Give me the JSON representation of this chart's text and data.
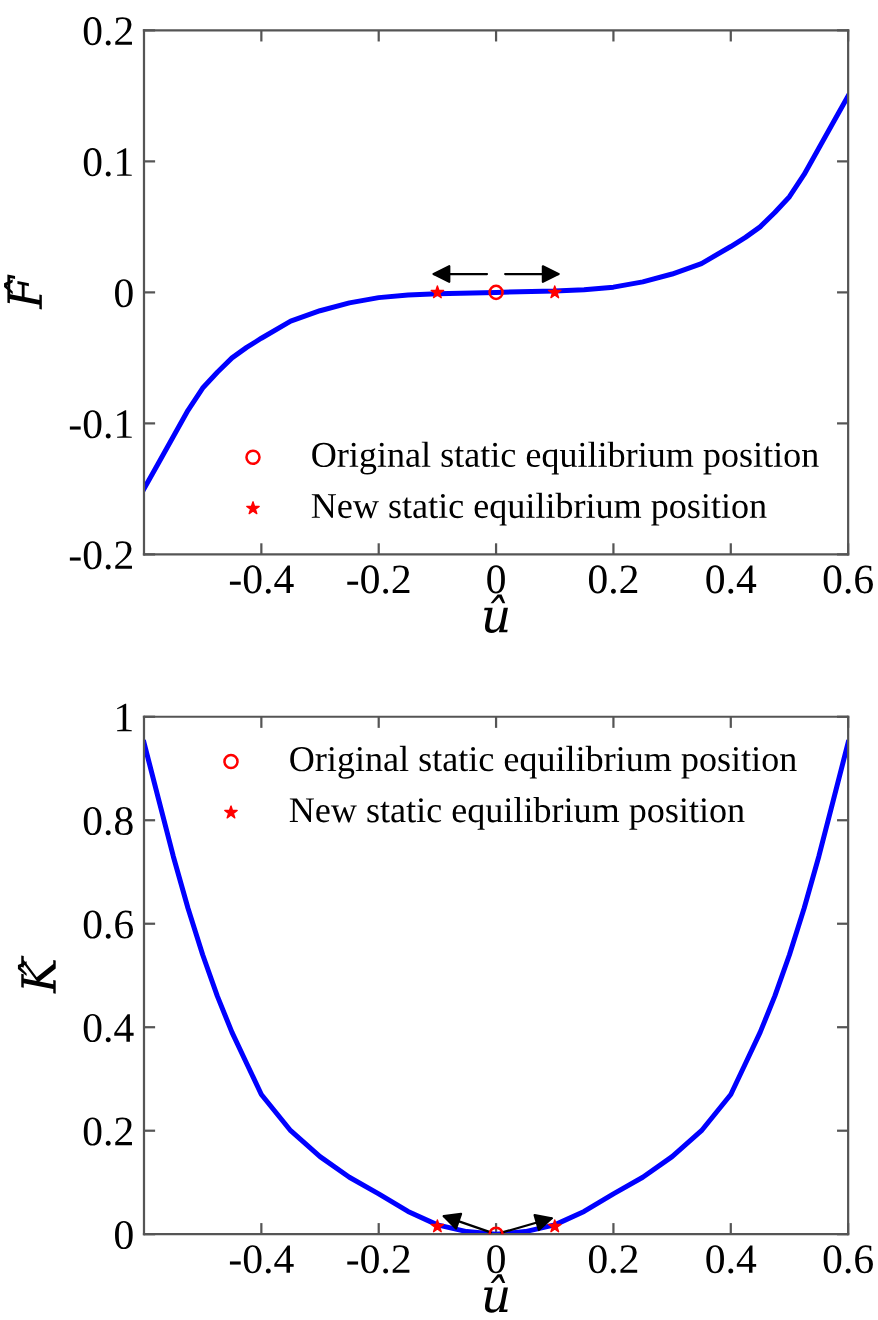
{
  "chart_data": [
    {
      "type": "line",
      "xlabel": "û",
      "ylabel": "F̂",
      "xlim": [
        -0.6,
        0.6
      ],
      "ylim": [
        -0.2,
        0.2
      ],
      "xticks": [
        -0.4,
        -0.2,
        0,
        0.2,
        0.4,
        0.6
      ],
      "yticks": [
        -0.2,
        -0.1,
        0,
        0.1,
        0.2
      ],
      "grid": false,
      "legend": "bottom right",
      "series": [
        {
          "color": "#0000ff",
          "marker": "none",
          "line_style": "solid",
          "x": [
            -0.6,
            -0.575,
            -0.55,
            -0.525,
            -0.5,
            -0.475,
            -0.45,
            -0.425,
            -0.4,
            -0.35,
            -0.3,
            -0.25,
            -0.2,
            -0.15,
            -0.1,
            0,
            0.1,
            0.15,
            0.2,
            0.25,
            0.3,
            0.35,
            0.4,
            0.425,
            0.45,
            0.475,
            0.5,
            0.525,
            0.55,
            0.575,
            0.6
          ],
          "values": [
            -0.15,
            -0.13,
            -0.11,
            -0.09,
            -0.073,
            -0.061,
            -0.05,
            -0.042,
            -0.035,
            -0.022,
            -0.014,
            -0.008,
            -0.004,
            -0.002,
            -0.001,
            0,
            0.001,
            0.002,
            0.004,
            0.008,
            0.014,
            0.022,
            0.035,
            0.042,
            0.05,
            0.061,
            0.073,
            0.09,
            0.11,
            0.13,
            0.15
          ]
        },
        {
          "type": "scatter",
          "name": "Original static equilibrium position",
          "color": "#ff0000",
          "marker": "circle",
          "x": [
            0
          ],
          "values": [
            0
          ]
        },
        {
          "type": "scatter",
          "name": "New static equilibrium position",
          "color": "#ff0000",
          "marker": "star",
          "x": [
            -0.1,
            0.1
          ],
          "values": [
            0,
            0
          ]
        }
      ]
    },
    {
      "type": "line",
      "xlabel": "û",
      "ylabel": "K̂",
      "xlim": [
        -0.6,
        0.6
      ],
      "ylim": [
        0,
        1
      ],
      "xticks": [
        -0.4,
        -0.2,
        0,
        0.2,
        0.4,
        0.6
      ],
      "yticks": [
        0,
        0.2,
        0.4,
        0.6,
        0.8,
        1
      ],
      "grid": false,
      "legend": "top",
      "series": [
        {
          "color": "#0000ff",
          "marker": "none",
          "line_style": "solid",
          "x": [
            -0.6,
            -0.575,
            -0.55,
            -0.525,
            -0.5,
            -0.475,
            -0.45,
            -0.425,
            -0.4,
            -0.35,
            -0.3,
            -0.25,
            -0.2,
            -0.15,
            -0.1,
            -0.05,
            0,
            0.05,
            0.1,
            0.15,
            0.2,
            0.25,
            0.3,
            0.35,
            0.4,
            0.425,
            0.45,
            0.475,
            0.5,
            0.525,
            0.55,
            0.575,
            0.6
          ],
          "values": [
            0.95,
            0.84,
            0.73,
            0.63,
            0.54,
            0.46,
            0.39,
            0.33,
            0.27,
            0.2,
            0.15,
            0.11,
            0.078,
            0.044,
            0.018,
            0.005,
            0,
            0.005,
            0.018,
            0.044,
            0.078,
            0.11,
            0.15,
            0.2,
            0.27,
            0.33,
            0.39,
            0.46,
            0.54,
            0.63,
            0.73,
            0.84,
            0.95
          ]
        },
        {
          "type": "scatter",
          "name": "Original static equilibrium position",
          "color": "#ff0000",
          "marker": "circle",
          "x": [
            0
          ],
          "values": [
            0
          ]
        },
        {
          "type": "scatter",
          "name": "New static equilibrium position",
          "color": "#ff0000",
          "marker": "star",
          "x": [
            -0.1,
            0.1
          ],
          "values": [
            0.015,
            0.015
          ]
        }
      ]
    }
  ]
}
